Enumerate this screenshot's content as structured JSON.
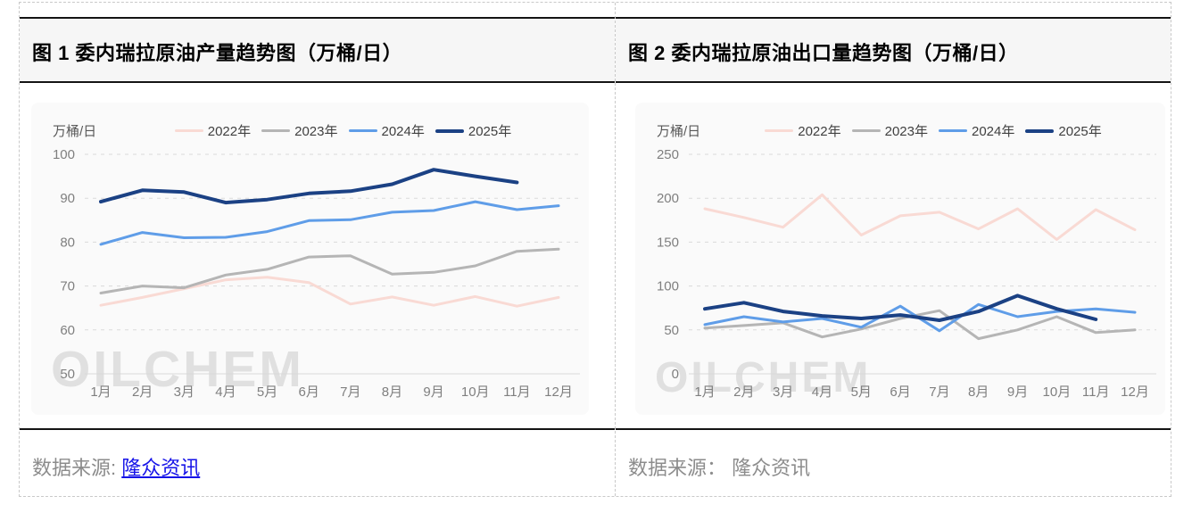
{
  "panels": [
    {
      "title": "图 1 委内瑞拉原油产量趋势图（万桶/日）",
      "unit_label": "万桶/日",
      "watermark": "OILCHEM",
      "footer": {
        "label": "数据来源: ",
        "source": "隆众资讯",
        "link": true
      }
    },
    {
      "title": "图 2 委内瑞拉原油出口量趋势图（万桶/日）",
      "unit_label": "万桶/日",
      "watermark": "OILCHEM",
      "footer": {
        "label": "数据来源： ",
        "source": "隆众资讯",
        "link": false
      }
    }
  ],
  "chart_data": [
    {
      "type": "line",
      "title": "图 1 委内瑞拉原油产量趋势图（万桶/日）",
      "ylabel": "万桶/日",
      "categories": [
        "1月",
        "2月",
        "3月",
        "4月",
        "5月",
        "6月",
        "7月",
        "8月",
        "9月",
        "10月",
        "11月",
        "12月"
      ],
      "series": [
        {
          "name": "2022年",
          "color": "#f9dad4",
          "width": 3,
          "values": [
            65.6,
            67.4,
            69.4,
            71.4,
            72.0,
            70.8,
            65.9,
            67.5,
            65.6,
            67.6,
            65.4,
            67.4
          ]
        },
        {
          "name": "2023年",
          "color": "#b5b5b5",
          "width": 3,
          "values": [
            68.4,
            70.0,
            69.6,
            72.5,
            73.8,
            76.6,
            76.9,
            72.7,
            73.1,
            74.6,
            77.9,
            78.4
          ]
        },
        {
          "name": "2024年",
          "color": "#5f9de8",
          "width": 3,
          "values": [
            79.5,
            82.2,
            81.0,
            81.1,
            82.4,
            84.9,
            85.1,
            86.8,
            87.2,
            89.2,
            87.4,
            88.3
          ]
        },
        {
          "name": "2025年",
          "color": "#1b4184",
          "width": 4,
          "values": [
            89.2,
            91.8,
            91.4,
            89.0,
            89.7,
            91.1,
            91.6,
            93.2,
            96.5,
            95.0,
            93.6,
            null
          ]
        }
      ],
      "ylim": [
        50,
        100
      ],
      "ytick_step": 10,
      "grid": "horizontal-dashed",
      "legend_position": "top"
    },
    {
      "type": "line",
      "title": "图 2 委内瑞拉原油出口量趋势图（万桶/日）",
      "ylabel": "万桶/日",
      "categories": [
        "1月",
        "2月",
        "3月",
        "4月",
        "5月",
        "6月",
        "7月",
        "8月",
        "9月",
        "10月",
        "11月",
        "12月"
      ],
      "series": [
        {
          "name": "2022年",
          "color": "#f9dad4",
          "width": 3,
          "values": [
            188,
            178,
            167,
            204,
            158,
            180,
            184,
            165,
            188,
            153,
            187,
            164
          ]
        },
        {
          "name": "2023年",
          "color": "#b5b5b5",
          "width": 3,
          "values": [
            52,
            55,
            58,
            42,
            51,
            63,
            72,
            40,
            50,
            65,
            47,
            50
          ]
        },
        {
          "name": "2024年",
          "color": "#5f9de8",
          "width": 3,
          "values": [
            56,
            65,
            59,
            63,
            53,
            77,
            49,
            79,
            65,
            71,
            74,
            70
          ]
        },
        {
          "name": "2025年",
          "color": "#1b4184",
          "width": 4,
          "values": [
            74,
            81,
            71,
            66,
            63,
            67,
            61,
            71,
            89,
            74,
            62,
            null
          ]
        }
      ],
      "ylim": [
        0,
        250
      ],
      "ytick_step": 50,
      "grid": "horizontal-dashed",
      "legend_position": "top"
    }
  ]
}
